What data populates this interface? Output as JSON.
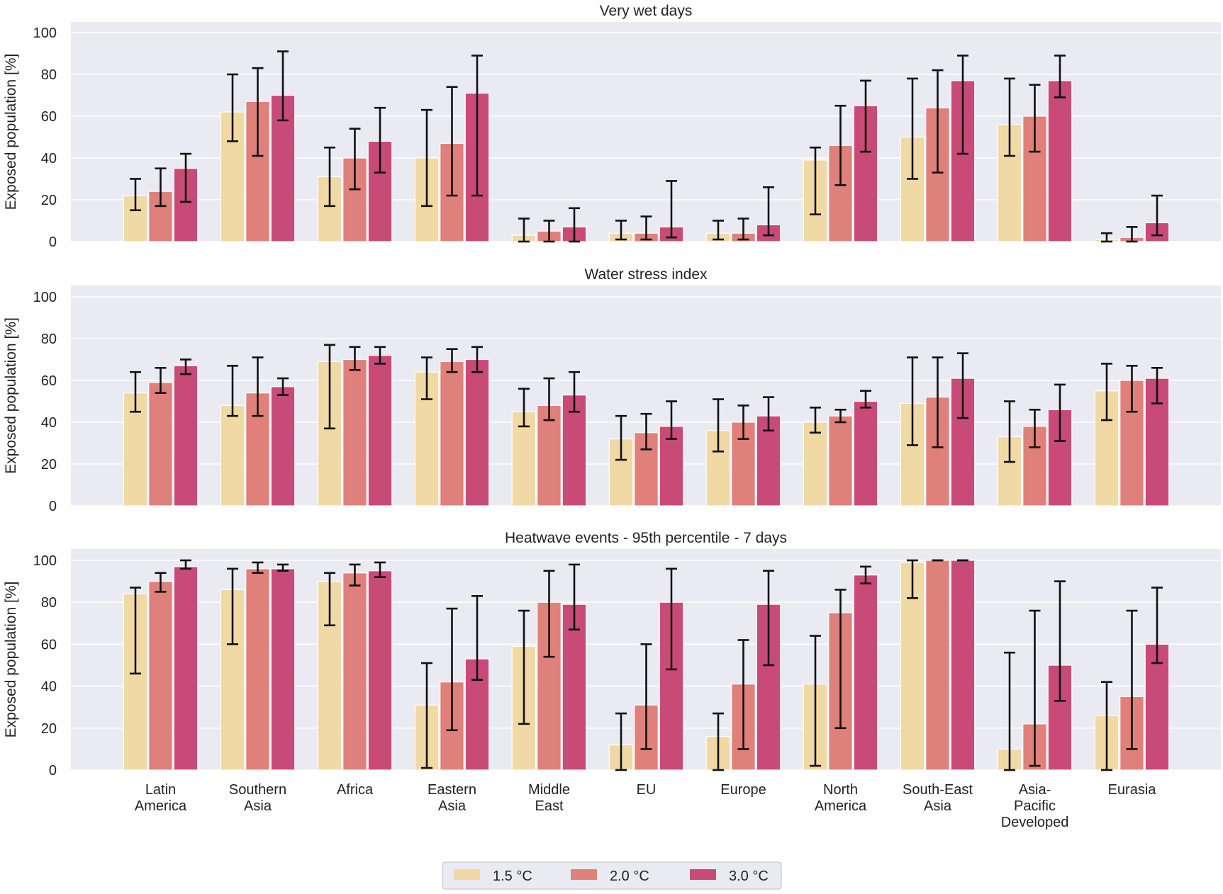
{
  "legend": {
    "placement": "bottom-center",
    "items": [
      {
        "label": "1.5  °C",
        "color": "#f0d9a5"
      },
      {
        "label": "2.0  °C",
        "color": "#e0807b"
      },
      {
        "label": "3.0  °C",
        "color": "#c84b77"
      }
    ]
  },
  "chart_data": [
    {
      "type": "bar",
      "title": "Very wet days",
      "ylabel": "Exposed population [%]",
      "ylim": [
        0,
        100
      ],
      "yticks": [
        0,
        20,
        40,
        60,
        80,
        100
      ],
      "grid": true,
      "categories": [
        "Latin America",
        "Southern Asia",
        "Africa",
        "Eastern Asia",
        "Middle East",
        "EU",
        "Europe",
        "North America",
        "South-East Asia",
        "Asia-Pacific Developed",
        "Eurasia"
      ],
      "series": [
        {
          "name": "1.5  °C",
          "values": [
            22,
            62,
            31,
            40,
            3,
            4,
            4,
            39,
            50,
            56,
            1
          ],
          "err_low": [
            15,
            48,
            17,
            17,
            0,
            1,
            1,
            13,
            30,
            41,
            0
          ],
          "err_high": [
            30,
            80,
            45,
            63,
            11,
            10,
            10,
            45,
            78,
            78,
            4
          ]
        },
        {
          "name": "2.0  °C",
          "values": [
            24,
            67,
            40,
            47,
            5,
            4,
            4,
            46,
            64,
            60,
            2
          ],
          "err_low": [
            17,
            41,
            25,
            22,
            0,
            1,
            1,
            27,
            33,
            43,
            0
          ],
          "err_high": [
            35,
            83,
            54,
            74,
            10,
            12,
            11,
            65,
            82,
            75,
            7
          ]
        },
        {
          "name": "3.0  °C",
          "values": [
            35,
            70,
            48,
            71,
            7,
            7,
            8,
            65,
            77,
            77,
            9
          ],
          "err_low": [
            19,
            58,
            33,
            22,
            0,
            2,
            3,
            43,
            42,
            69,
            3
          ],
          "err_high": [
            42,
            91,
            64,
            89,
            16,
            29,
            26,
            77,
            89,
            89,
            22
          ]
        }
      ]
    },
    {
      "type": "bar",
      "title": "Water stress index",
      "ylabel": "Exposed population [%]",
      "ylim": [
        0,
        100
      ],
      "yticks": [
        0,
        20,
        40,
        60,
        80,
        100
      ],
      "grid": true,
      "categories": [
        "Latin America",
        "Southern Asia",
        "Africa",
        "Eastern Asia",
        "Middle East",
        "EU",
        "Europe",
        "North America",
        "South-East Asia",
        "Asia-Pacific Developed",
        "Eurasia"
      ],
      "series": [
        {
          "name": "1.5  °C",
          "values": [
            54,
            48,
            69,
            64,
            45,
            32,
            36,
            40,
            49,
            33,
            55
          ],
          "err_low": [
            45,
            43,
            37,
            51,
            38,
            22,
            26,
            35,
            29,
            21,
            41
          ],
          "err_high": [
            64,
            67,
            77,
            71,
            56,
            43,
            51,
            47,
            71,
            50,
            68
          ]
        },
        {
          "name": "2.0  °C",
          "values": [
            59,
            54,
            70,
            69,
            48,
            35,
            40,
            43,
            52,
            38,
            60
          ],
          "err_low": [
            54,
            43,
            65,
            64,
            41,
            27,
            32,
            40,
            28,
            28,
            45
          ],
          "err_high": [
            66,
            71,
            76,
            75,
            61,
            44,
            48,
            46,
            71,
            46,
            67
          ]
        },
        {
          "name": "3.0  °C",
          "values": [
            67,
            57,
            72,
            70,
            53,
            38,
            43,
            50,
            61,
            46,
            61
          ],
          "err_low": [
            63,
            53,
            68,
            64,
            45,
            32,
            36,
            47,
            42,
            31,
            49
          ],
          "err_high": [
            70,
            61,
            76,
            76,
            64,
            50,
            52,
            55,
            73,
            58,
            66
          ]
        }
      ]
    },
    {
      "type": "bar",
      "title": "Heatwave events - 95th percentile - 7 days",
      "ylabel": "Exposed population [%]",
      "ylim": [
        0,
        100
      ],
      "yticks": [
        0,
        20,
        40,
        60,
        80,
        100
      ],
      "grid": true,
      "categories": [
        "Latin America",
        "Southern Asia",
        "Africa",
        "Eastern Asia",
        "Middle East",
        "EU",
        "Europe",
        "North America",
        "South-East Asia",
        "Asia-Pacific Developed",
        "Eurasia"
      ],
      "series": [
        {
          "name": "1.5  °C",
          "values": [
            84,
            86,
            90,
            31,
            59,
            12,
            16,
            41,
            99,
            10,
            26
          ],
          "err_low": [
            46,
            60,
            69,
            1,
            22,
            0,
            0,
            2,
            82,
            0,
            0
          ],
          "err_high": [
            87,
            96,
            94,
            51,
            76,
            27,
            27,
            64,
            100,
            56,
            42
          ]
        },
        {
          "name": "2.0  °C",
          "values": [
            90,
            96,
            94,
            42,
            80,
            31,
            41,
            75,
            100,
            22,
            35
          ],
          "err_low": [
            85,
            94,
            88,
            19,
            54,
            10,
            10,
            20,
            100,
            2,
            10
          ],
          "err_high": [
            94,
            99,
            98,
            77,
            95,
            60,
            62,
            86,
            100,
            76,
            76
          ]
        },
        {
          "name": "3.0  °C",
          "values": [
            97,
            96,
            95,
            53,
            79,
            80,
            79,
            93,
            100,
            50,
            60
          ],
          "err_low": [
            96,
            95,
            92,
            43,
            67,
            48,
            50,
            89,
            100,
            33,
            51
          ],
          "err_high": [
            100,
            98,
            99,
            83,
            98,
            96,
            95,
            97,
            100,
            90,
            87
          ]
        }
      ]
    }
  ],
  "x_tick_labels": [
    [
      "Latin",
      "America"
    ],
    [
      "Southern",
      "Asia"
    ],
    [
      "Africa"
    ],
    [
      "Eastern",
      "Asia"
    ],
    [
      "Middle",
      "East"
    ],
    [
      "EU"
    ],
    [
      "Europe"
    ],
    [
      "North",
      "America"
    ],
    [
      "South-East",
      "Asia"
    ],
    [
      "Asia-",
      "Pacific",
      "Developed"
    ],
    [
      "Eurasia"
    ]
  ]
}
